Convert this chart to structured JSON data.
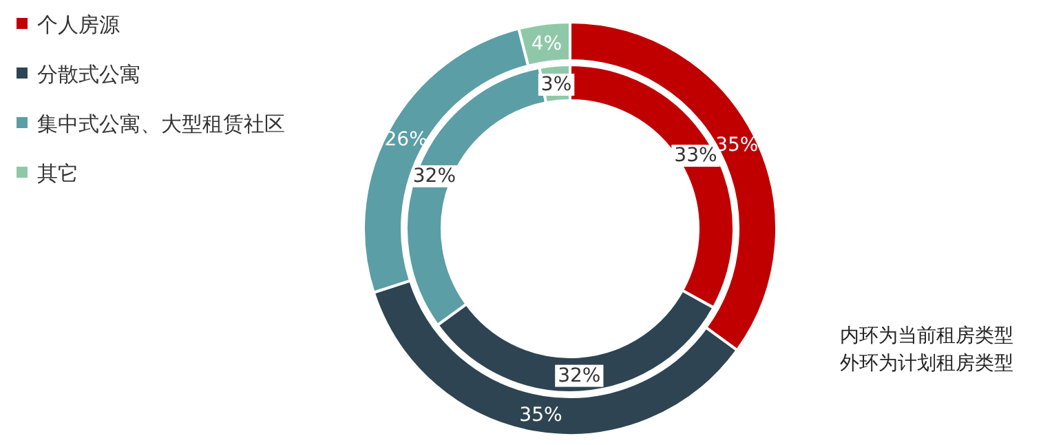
{
  "chart_data": {
    "type": "donut",
    "categories": [
      "个人房源",
      "分散式公寓",
      "集中式公寓、大型租赁社区",
      "其它"
    ],
    "colors": [
      "#c00000",
      "#2e4452",
      "#5b9ea6",
      "#8fc8a8"
    ],
    "series": [
      {
        "values": [
          33,
          32,
          32,
          3
        ],
        "value_labels": [
          "33%",
          "32%",
          "32%",
          "3%"
        ]
      },
      {
        "values": [
          35,
          35,
          26,
          4
        ],
        "value_labels": [
          "35%",
          "35%",
          "26%",
          "4%"
        ]
      }
    ],
    "legend": "top left",
    "annotations": [
      "内环为当前租房类型",
      "外环为计划租房类型"
    ]
  }
}
